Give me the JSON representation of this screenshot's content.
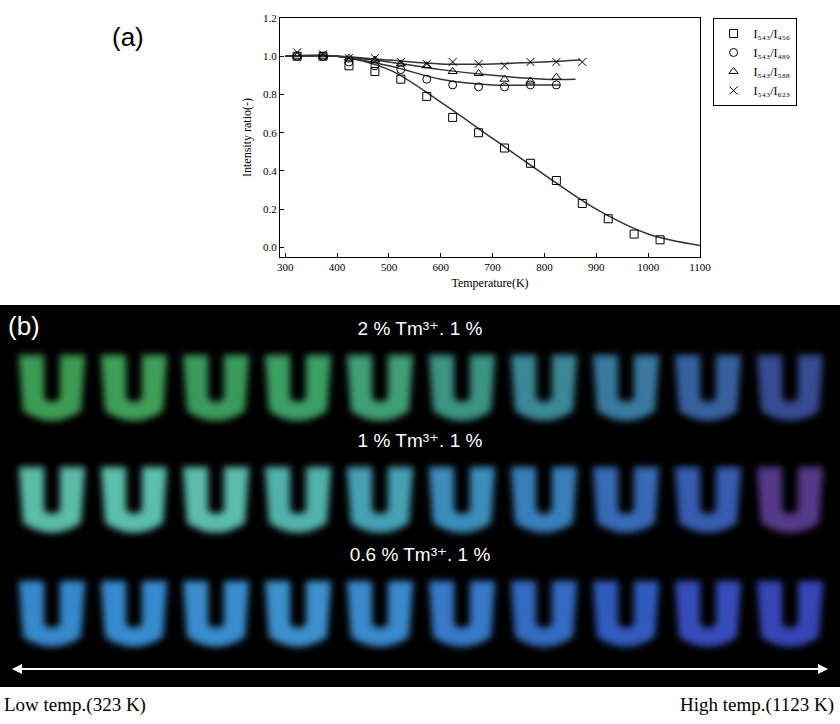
{
  "chart_data": {
    "type": "scatter",
    "panel": "(a)",
    "x_label": "Temperature(K)",
    "y_label": "Intensity ratio(-)",
    "xlim": [
      290,
      1100
    ],
    "xticks": [
      300,
      400,
      500,
      600,
      700,
      800,
      900,
      1000,
      1100
    ],
    "ylim": [
      -0.05,
      1.2
    ],
    "yticks": [
      {
        "value": 0,
        "label": "0.0"
      },
      0.2,
      0.4,
      0.6,
      0.8,
      {
        "value": 1,
        "label": "1.0"
      },
      1.2
    ],
    "grid": false,
    "legend": "right",
    "series": [
      {
        "name": "I₅₄₃/I₄₅₆",
        "color": "#000000",
        "marker": "square-open",
        "x": [
          323,
          373,
          423,
          473,
          523,
          573,
          623,
          673,
          723,
          773,
          823,
          873,
          923,
          973,
          1023
        ],
        "values": [
          1.0,
          1.0,
          0.95,
          0.92,
          0.88,
          0.79,
          0.68,
          0.6,
          0.52,
          0.44,
          0.35,
          0.23,
          0.15,
          0.07,
          0.04
        ],
        "fit": {
          "x": [
            300,
            400,
            500,
            600,
            700,
            800,
            900,
            1000,
            1100
          ],
          "values": [
            1.0,
            1.0,
            0.93,
            0.76,
            0.57,
            0.38,
            0.2,
            0.07,
            0.01
          ]
        }
      },
      {
        "name": "I₅₄₃/I₄₈₉",
        "color": "#000000",
        "marker": "circle-open",
        "x": [
          323,
          373,
          423,
          473,
          523,
          573,
          623,
          673,
          723,
          773,
          823
        ],
        "values": [
          1.0,
          1.0,
          0.97,
          0.95,
          0.93,
          0.88,
          0.85,
          0.84,
          0.84,
          0.85,
          0.85
        ],
        "fit": {
          "x": [
            300,
            400,
            500,
            600,
            700,
            800,
            830
          ],
          "values": [
            1.0,
            1.0,
            0.95,
            0.88,
            0.85,
            0.85,
            0.85
          ]
        }
      },
      {
        "name": "I₅₄₃/I₅₈₈",
        "color": "#000000",
        "marker": "triangle-up-open",
        "x": [
          323,
          373,
          423,
          473,
          523,
          573,
          623,
          673,
          723,
          773,
          823
        ],
        "values": [
          1.0,
          1.0,
          0.99,
          0.98,
          0.96,
          0.95,
          0.92,
          0.91,
          0.88,
          0.87,
          0.89
        ],
        "fit": {
          "x": [
            300,
            400,
            500,
            600,
            700,
            800,
            860
          ],
          "values": [
            1.0,
            1.0,
            0.97,
            0.93,
            0.9,
            0.88,
            0.88
          ]
        }
      },
      {
        "name": "I₅₄₃/I₆₂₃",
        "color": "#000000",
        "marker": "x-thin-open",
        "x": [
          323,
          373,
          423,
          473,
          523,
          573,
          623,
          673,
          723,
          773,
          823,
          873
        ],
        "values": [
          1.02,
          1.01,
          0.99,
          0.99,
          0.97,
          0.96,
          0.97,
          0.96,
          0.95,
          0.97,
          0.97,
          0.97
        ],
        "fit": {
          "x": [
            300,
            400,
            500,
            600,
            700,
            800,
            870
          ],
          "values": [
            1.0,
            1.0,
            0.98,
            0.96,
            0.96,
            0.97,
            0.98
          ]
        }
      }
    ]
  },
  "photo": {
    "panel": "(b)",
    "rows": [
      {
        "label": "2 % Tm³⁺. 1 %",
        "colors": [
          "#3fa45a",
          "#41a85c",
          "#3da35f",
          "#3fa869",
          "#44a87c",
          "#3f9c8a",
          "#3f8fa0",
          "#3b80a8",
          "#3a66a6",
          "#3a4f9a"
        ]
      },
      {
        "label": "1 % Tm³⁺. 1 %",
        "colors": [
          "#5fc7b0",
          "#60c9b4",
          "#5fc6b4",
          "#55bcb4",
          "#48a9bd",
          "#3f95c4",
          "#3c85c4",
          "#3a70c0",
          "#3a60b8",
          "#5a3c90"
        ]
      },
      {
        "label": "0.6 % Tm³⁺. 1 %",
        "colors": [
          "#3a8fd8",
          "#3a92da",
          "#3b95d8",
          "#3f98d8",
          "#3c90d6",
          "#3a80d2",
          "#3670cc",
          "#3460c8",
          "#3850c4",
          "#3a48c0"
        ]
      }
    ],
    "low_label": "Low temp.(323 K)",
    "high_label": "High temp.(1123 K)"
  }
}
